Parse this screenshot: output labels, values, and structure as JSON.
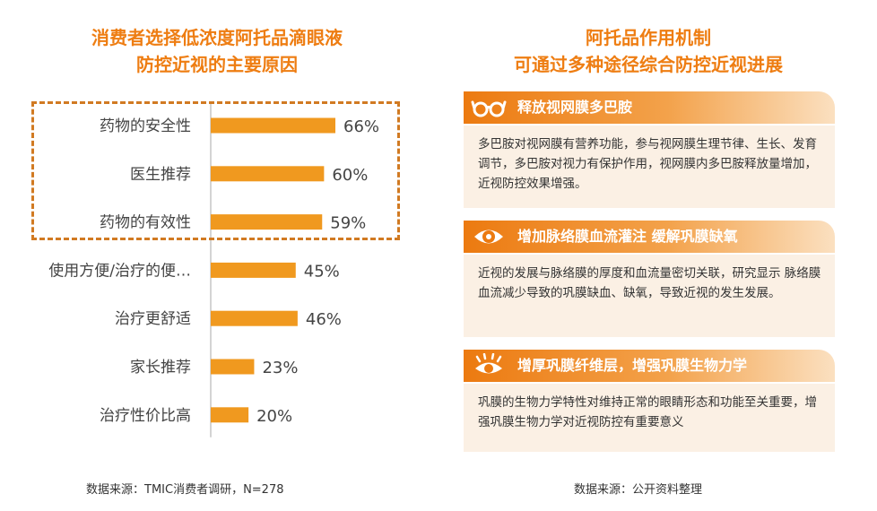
{
  "left_title": {
    "line1": "消费者选择低浓度阿托品滴眼液",
    "line2": "防控近视的主要原因"
  },
  "right_title": {
    "line1": "阿托品作用机制",
    "line2": "可通过多种途径综合防控近视进展"
  },
  "chart_data": {
    "type": "bar",
    "orientation": "horizontal",
    "categories": [
      "药物的安全性",
      "医生推荐",
      "药物的有效性",
      "使用方便/治疗的便…",
      "治疗更舒适",
      "家长推荐",
      "治疗性价比高"
    ],
    "values": [
      66,
      60,
      59,
      45,
      46,
      23,
      20
    ],
    "value_labels": [
      "66%",
      "60%",
      "59%",
      "45%",
      "46%",
      "23%",
      "20%"
    ],
    "unit": "%",
    "xlim": [
      0,
      100
    ],
    "highlighted_categories": [
      "药物的安全性",
      "医生推荐",
      "药物的有效性"
    ],
    "bar_color": "#f0991f",
    "axis_color": "#aaaaaa",
    "highlight_border_color": "#d17a22"
  },
  "mechanisms": [
    {
      "icon": "glasses-icon",
      "title": "释放视网膜多巴胺",
      "text": "多巴胺对视网膜有营养功能，参与视网膜生理节律、生长、发育调节，多巴胺对视力有保护作用，视网膜内多巴胺释放量增加，近视防控效果增强。"
    },
    {
      "icon": "eye-icon",
      "title": "增加脉络膜血流灌注 缓解巩膜缺氧",
      "text": "近视的发展与脉络膜的厚度和血流量密切关联，研究显示 脉络膜血流减少导致的巩膜缺血、缺氧，导致近视的发生发展。"
    },
    {
      "icon": "eye-lashes-icon",
      "title": "增厚巩膜纤维层，增强巩膜生物力学",
      "text": "巩膜的生物力学特性对维持正常的眼睛形态和功能至关重要，增强巩膜生物力学对近视防控有重要意义"
    }
  ],
  "sources": {
    "left": "数据来源：TMIC消费者调研，N=278",
    "right": "数据来源：公开资料整理"
  },
  "colors": {
    "accent": "#ee7d12",
    "card_background": "#fbf0e4"
  }
}
